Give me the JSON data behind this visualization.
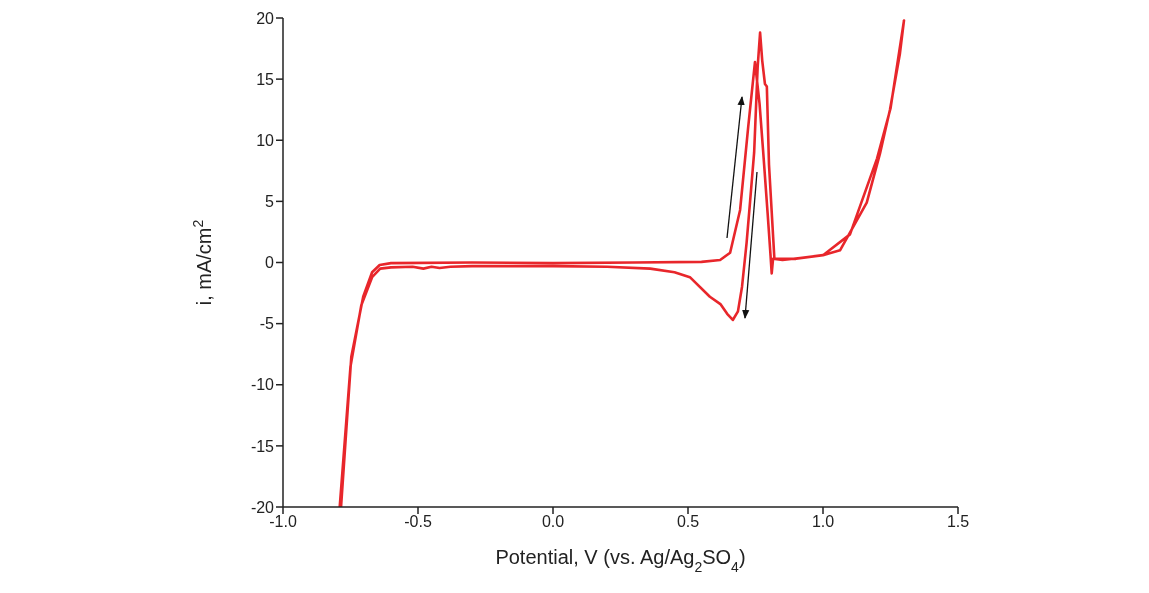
{
  "chart_data": {
    "type": "line",
    "xlabel": "Potential, V (vs. Ag/Ag$_{2}$SO$_{4}$)",
    "ylabel": "i, mA/cm$^{2}$",
    "xlim": [
      -1,
      1.5
    ],
    "xticks": [
      {
        "value": -1,
        "label": "-1.0"
      },
      {
        "value": -0.5,
        "label": "-0.5"
      },
      {
        "value": 0,
        "label": "0.0"
      },
      {
        "value": 0.5,
        "label": "0.5"
      },
      {
        "value": 1,
        "label": "1.0"
      },
      {
        "value": 1.5,
        "label": "1.5"
      }
    ],
    "ylim": [
      -20,
      20
    ],
    "yticks": [
      -20,
      -15,
      -10,
      -5,
      0,
      5,
      10,
      15,
      20
    ],
    "grid": false,
    "legend": false,
    "marker": "none",
    "line_style": "solid",
    "series": [
      {
        "color": "#e8262b",
        "x": [
          -0.785,
          -0.747,
          -0.703,
          -0.67,
          -0.642,
          -0.6,
          -0.3,
          0,
          0.3,
          0.55,
          0.619,
          0.656,
          0.693,
          0.723,
          0.748,
          0.765,
          0.778,
          0.795,
          0.805,
          0.81,
          0.815,
          0.85,
          0.915,
          1.0,
          1.063,
          1.162,
          1.211,
          1.248,
          1.285,
          1.3,
          1.25,
          1.2,
          1.1,
          1.0,
          0.9,
          0.82,
          0.8,
          0.792,
          0.785,
          0.775,
          0.767,
          0.758,
          0.745,
          0.73,
          0.717,
          0.7,
          0.685,
          0.666,
          0.645,
          0.62,
          0.581,
          0.507,
          0.45,
          0.36,
          0.2,
          0,
          -0.3,
          -0.38,
          -0.42,
          -0.45,
          -0.48,
          -0.52,
          -0.6,
          -0.64,
          -0.67,
          -0.71,
          -0.75,
          -0.79
        ],
        "values": [
          -20,
          -7.7,
          -2.8,
          -0.8,
          -0.2,
          -0.05,
          0,
          -0.05,
          0,
          0.05,
          0.2,
          0.8,
          4.3,
          11.1,
          16.4,
          13,
          9.2,
          4,
          0.8,
          -0.9,
          0.3,
          0.2,
          0.37,
          0.6,
          1.0,
          4.9,
          8.9,
          12.5,
          17.1,
          19.8,
          12.6,
          8.5,
          2.3,
          0.6,
          0.3,
          0.3,
          8,
          14.4,
          14.6,
          16.5,
          18.8,
          16,
          9,
          5,
          1.6,
          -2,
          -4,
          -4.7,
          -4.2,
          -3.4,
          -2.8,
          -1.2,
          -0.8,
          -0.5,
          -0.35,
          -0.3,
          -0.3,
          -0.35,
          -0.45,
          -0.35,
          -0.5,
          -0.35,
          -0.4,
          -0.5,
          -1.2,
          -3.5,
          -8.5,
          -20
        ]
      }
    ]
  }
}
